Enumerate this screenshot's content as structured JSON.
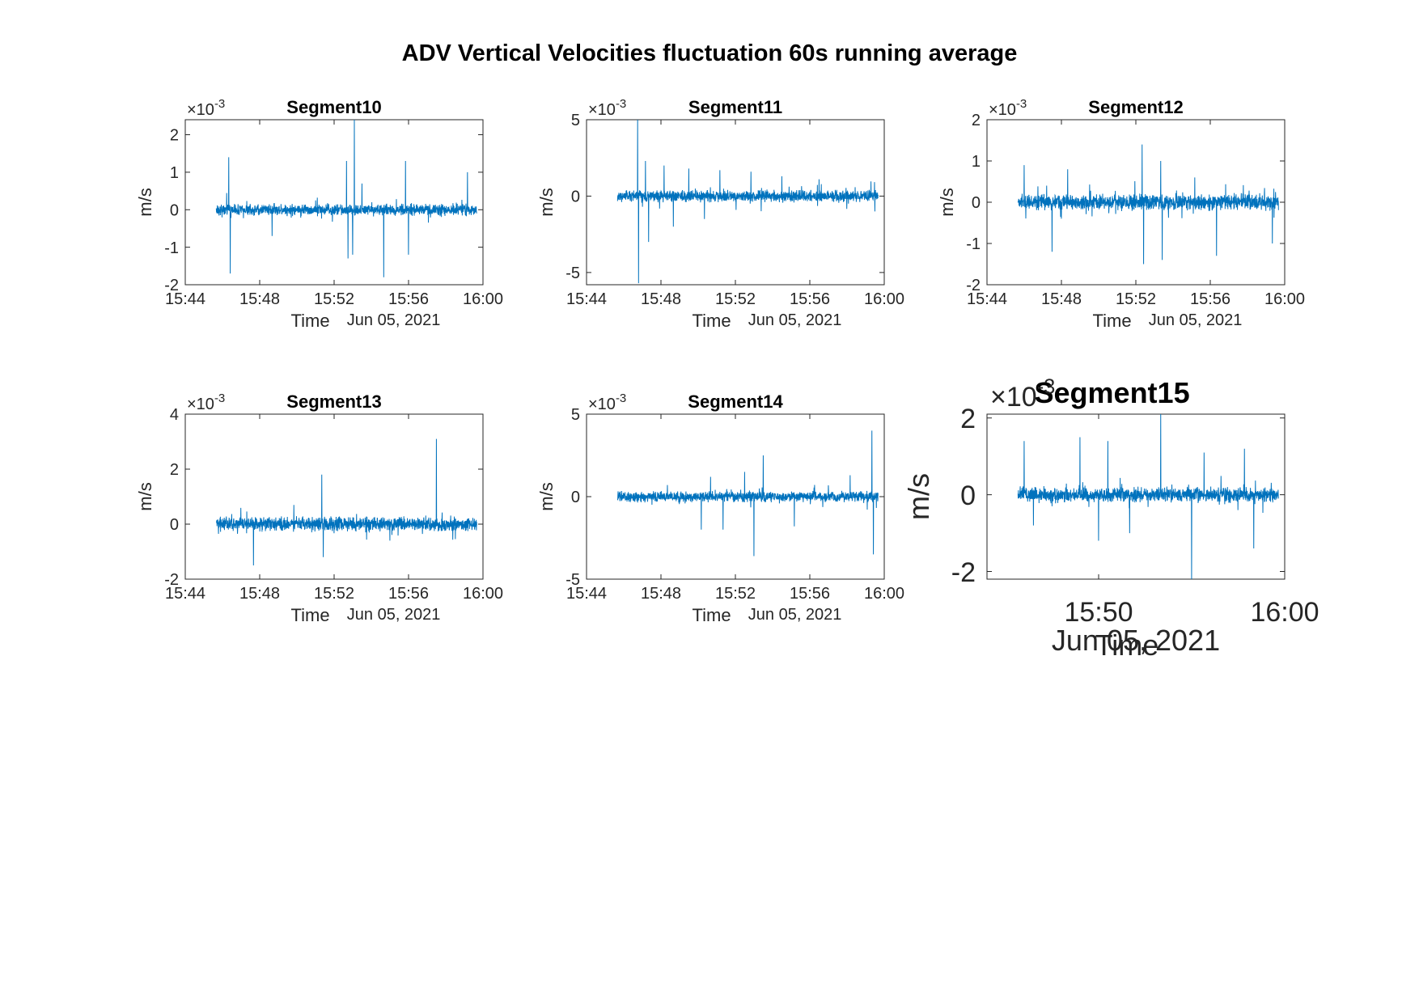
{
  "figure": {
    "suptitle": "ADV Vertical Velocities fluctuation 60s running average",
    "line_color": "#0072BD"
  },
  "chart_data": [
    {
      "type": "line",
      "title": "Segment10",
      "xlabel": "Time",
      "date_label": "Jun 05, 2021",
      "ylabel": "m/s",
      "exponent_label": "×10",
      "exponent_power": "-3",
      "x_range": [
        "15:44",
        "16:00"
      ],
      "xticks": [
        "15:44",
        "15:48",
        "15:52",
        "15:56",
        "16:00"
      ],
      "ylim": [
        -2,
        2.4
      ],
      "yticks": [
        -2,
        -1,
        0,
        1,
        2
      ],
      "ytick_labels": [
        "-2",
        "-1",
        "0",
        "1",
        "2"
      ],
      "data_x_range": [
        "15:45:40",
        "15:59:40"
      ],
      "noise_amplitude": 0.12,
      "spikes": [
        {
          "t": "15:46:20",
          "v": 1.4
        },
        {
          "t": "15:46:25",
          "v": -1.7
        },
        {
          "t": "15:48:40",
          "v": -0.7
        },
        {
          "t": "15:52:40",
          "v": 1.3
        },
        {
          "t": "15:52:45",
          "v": -1.3
        },
        {
          "t": "15:53:05",
          "v": 2.4
        },
        {
          "t": "15:53:00",
          "v": -1.2
        },
        {
          "t": "15:54:40",
          "v": -1.8
        },
        {
          "t": "15:55:50",
          "v": 1.3
        },
        {
          "t": "15:56:00",
          "v": -1.2
        },
        {
          "t": "15:59:10",
          "v": 1.0
        },
        {
          "t": "15:53:30",
          "v": 0.7
        }
      ]
    },
    {
      "type": "line",
      "title": "Segment11",
      "xlabel": "Time",
      "date_label": "Jun 05, 2021",
      "ylabel": "m/s",
      "exponent_label": "×10",
      "exponent_power": "-3",
      "x_range": [
        "15:44",
        "16:00"
      ],
      "xticks": [
        "15:44",
        "15:48",
        "15:52",
        "15:56",
        "16:00"
      ],
      "ylim": [
        -5.8,
        5
      ],
      "yticks": [
        -5,
        0,
        5
      ],
      "ytick_labels": [
        "-5",
        "0",
        "5"
      ],
      "data_x_range": [
        "15:45:40",
        "15:59:40"
      ],
      "noise_amplitude": 0.3,
      "spikes": [
        {
          "t": "15:46:45",
          "v": 5.0
        },
        {
          "t": "15:46:48",
          "v": -5.7
        },
        {
          "t": "15:47:10",
          "v": 2.3
        },
        {
          "t": "15:47:20",
          "v": -3.0
        },
        {
          "t": "15:48:10",
          "v": 2.0
        },
        {
          "t": "15:48:40",
          "v": -2.0
        },
        {
          "t": "15:49:30",
          "v": 1.8
        },
        {
          "t": "15:50:20",
          "v": -1.5
        },
        {
          "t": "15:51:10",
          "v": 1.7
        },
        {
          "t": "15:52:50",
          "v": 1.6
        },
        {
          "t": "15:54:30",
          "v": 1.3
        },
        {
          "t": "15:56:30",
          "v": 1.1
        },
        {
          "t": "15:59:30",
          "v": -1.0
        }
      ]
    },
    {
      "type": "line",
      "title": "Segment12",
      "xlabel": "Time",
      "date_label": "Jun 05, 2021",
      "ylabel": "m/s",
      "exponent_label": "×10",
      "exponent_power": "-3",
      "x_range": [
        "15:44",
        "16:00"
      ],
      "xticks": [
        "15:44",
        "15:48",
        "15:52",
        "15:56",
        "16:00"
      ],
      "ylim": [
        -2,
        2
      ],
      "yticks": [
        -2,
        -1,
        0,
        1,
        2
      ],
      "ytick_labels": [
        "-2",
        "-1",
        "0",
        "1",
        "2"
      ],
      "data_x_range": [
        "15:45:40",
        "15:59:40"
      ],
      "noise_amplitude": 0.15,
      "spikes": [
        {
          "t": "15:46:00",
          "v": 0.9
        },
        {
          "t": "15:47:30",
          "v": -1.2
        },
        {
          "t": "15:48:20",
          "v": 0.8
        },
        {
          "t": "15:52:20",
          "v": 1.4
        },
        {
          "t": "15:52:25",
          "v": -1.5
        },
        {
          "t": "15:53:20",
          "v": 1.0
        },
        {
          "t": "15:53:25",
          "v": -1.4
        },
        {
          "t": "15:56:20",
          "v": -1.3
        },
        {
          "t": "15:59:20",
          "v": -1.0
        },
        {
          "t": "15:55:10",
          "v": 0.6
        }
      ]
    },
    {
      "type": "line",
      "title": "Segment13",
      "xlabel": "Time",
      "date_label": "Jun 05, 2021",
      "ylabel": "m/s",
      "exponent_label": "×10",
      "exponent_power": "-3",
      "x_range": [
        "15:44",
        "16:00"
      ],
      "xticks": [
        "15:44",
        "15:48",
        "15:52",
        "15:56",
        "16:00"
      ],
      "ylim": [
        -2,
        4
      ],
      "yticks": [
        -2,
        0,
        2,
        4
      ],
      "ytick_labels": [
        "-2",
        "0",
        "2",
        "4"
      ],
      "data_x_range": [
        "15:45:40",
        "15:59:40"
      ],
      "noise_amplitude": 0.2,
      "spikes": [
        {
          "t": "15:47:40",
          "v": -1.5
        },
        {
          "t": "15:51:20",
          "v": 1.8
        },
        {
          "t": "15:51:25",
          "v": -1.2
        },
        {
          "t": "15:57:30",
          "v": 3.1
        },
        {
          "t": "15:49:50",
          "v": 0.7
        },
        {
          "t": "15:55:00",
          "v": -0.6
        }
      ]
    },
    {
      "type": "line",
      "title": "Segment14",
      "xlabel": "Time",
      "date_label": "Jun 05, 2021",
      "ylabel": "m/s",
      "exponent_label": "×10",
      "exponent_power": "-3",
      "x_range": [
        "15:44",
        "16:00"
      ],
      "xticks": [
        "15:44",
        "15:48",
        "15:52",
        "15:56",
        "16:00"
      ],
      "ylim": [
        -5,
        5
      ],
      "yticks": [
        -5,
        0,
        5
      ],
      "ytick_labels": [
        "-5",
        "0",
        "5"
      ],
      "data_x_range": [
        "15:45:40",
        "15:59:40"
      ],
      "noise_amplitude": 0.25,
      "spikes": [
        {
          "t": "15:50:10",
          "v": -2.0
        },
        {
          "t": "15:50:40",
          "v": 1.2
        },
        {
          "t": "15:51:20",
          "v": -2.0
        },
        {
          "t": "15:52:30",
          "v": 1.5
        },
        {
          "t": "15:53:00",
          "v": -3.6
        },
        {
          "t": "15:53:30",
          "v": 2.5
        },
        {
          "t": "15:55:10",
          "v": -1.8
        },
        {
          "t": "15:59:20",
          "v": 4.0
        },
        {
          "t": "15:59:25",
          "v": -3.5
        },
        {
          "t": "15:58:10",
          "v": 1.3
        }
      ]
    },
    {
      "type": "line",
      "title": "Segment15",
      "xlabel": "Time",
      "date_label": "Jun 05, 2021",
      "ylabel": "m/s",
      "exponent_label": "×10",
      "exponent_power": "-3",
      "x_range": [
        "15:44",
        "16:00"
      ],
      "xticks": [
        "15:50",
        "16:00"
      ],
      "ylim": [
        -2.2,
        2.1
      ],
      "yticks": [
        -2,
        0,
        2
      ],
      "ytick_labels": [
        "-2",
        "0",
        "2"
      ],
      "data_x_range": [
        "15:45:40",
        "15:59:40"
      ],
      "noise_amplitude": 0.15,
      "spikes": [
        {
          "t": "15:46:00",
          "v": 1.4
        },
        {
          "t": "15:46:30",
          "v": -0.8
        },
        {
          "t": "15:49:00",
          "v": 1.5
        },
        {
          "t": "15:50:00",
          "v": -1.2
        },
        {
          "t": "15:50:30",
          "v": 1.4
        },
        {
          "t": "15:53:20",
          "v": 2.1
        },
        {
          "t": "15:55:00",
          "v": -2.2
        },
        {
          "t": "15:55:40",
          "v": 1.1
        },
        {
          "t": "15:57:50",
          "v": 1.2
        },
        {
          "t": "15:58:20",
          "v": -1.4
        },
        {
          "t": "15:51:40",
          "v": -1.0
        }
      ]
    }
  ]
}
